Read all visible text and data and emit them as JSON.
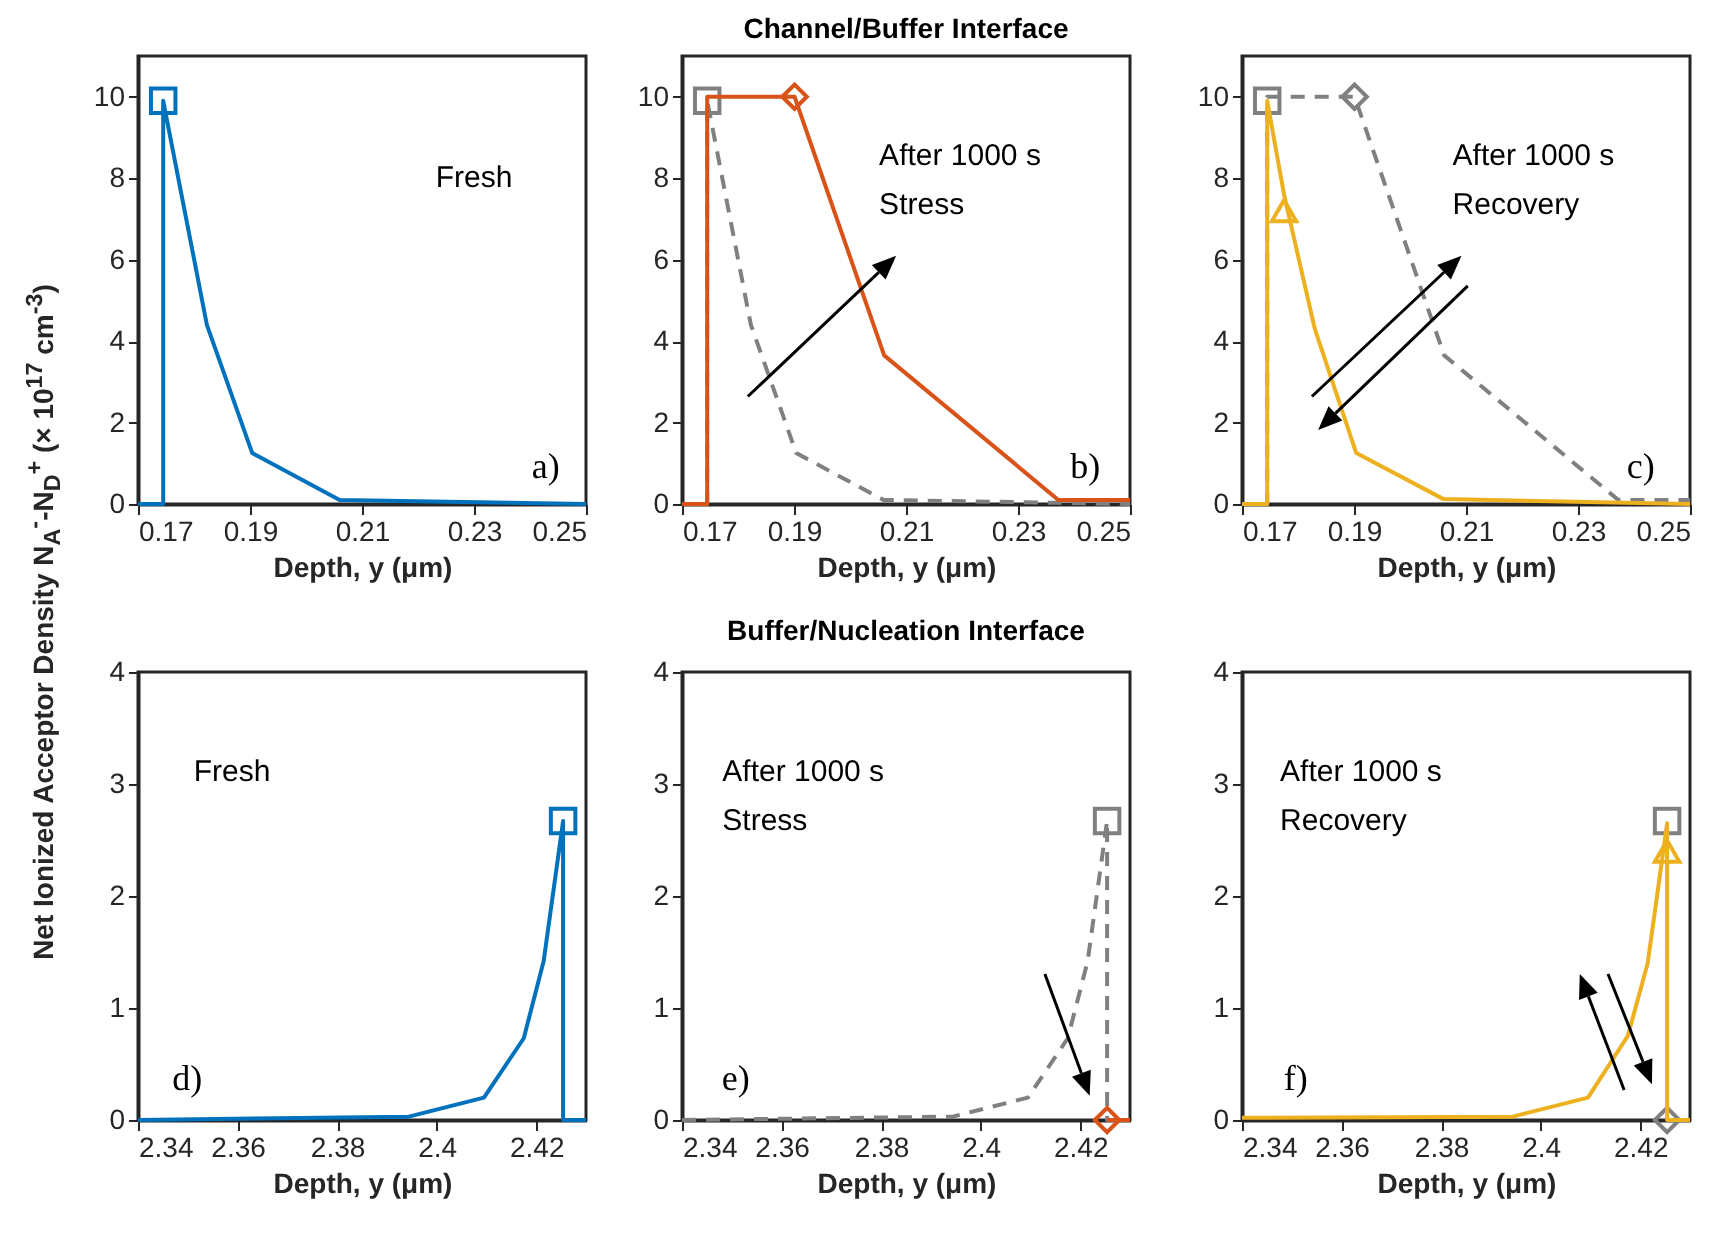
{
  "chart_data": [
    {
      "type": "line",
      "ylabel": "Net Ionized Acceptor Density N$_{A}$$^{-}$-N$_{D}$$^{+}$ (× 10$^{17}$ cm$^{-3}$)",
      "xlabel": "Depth, y (μm)",
      "xlim": [
        0.17,
        0.25
      ],
      "ylim": [
        0,
        11
      ],
      "xticks": [
        0.17,
        0.19,
        0.21,
        0.23,
        0.25
      ],
      "yticks": [
        0,
        2,
        4,
        6,
        8,
        10
      ],
      "annotations": [
        "Fresh",
        "a)"
      ],
      "series": [
        {
          "type": "line",
          "color": "#0072bd",
          "x": [
            0.17,
            0.1745,
            0.1745,
            0.1823,
            0.1904,
            0.206,
            0.25
          ],
          "values": [
            0,
            0,
            9.9,
            4.4,
            1.25,
            0.1,
            0
          ]
        },
        {
          "type": "scatter",
          "marker": "square",
          "color": "#0072bd",
          "x": [
            0.1745
          ],
          "values": [
            9.9
          ]
        }
      ]
    },
    {
      "type": "line",
      "title": "Channel/Buffer Interface",
      "xlabel": "Depth, y (μm)",
      "xlim": [
        0.17,
        0.25
      ],
      "ylim": [
        0,
        11
      ],
      "xticks": [
        0.17,
        0.19,
        0.21,
        0.23,
        0.25
      ],
      "yticks": [
        0,
        2,
        4,
        6,
        8,
        10
      ],
      "annotations": [
        "After 1000 s",
        "Stress",
        "b)"
      ],
      "series": [
        {
          "type": "line",
          "line_style": "dashed",
          "color": "#808080",
          "x": [
            0.17,
            0.1745,
            0.1745,
            0.1823,
            0.1904,
            0.206,
            0.25
          ],
          "values": [
            0,
            0,
            9.9,
            4.4,
            1.25,
            0.1,
            0
          ]
        },
        {
          "type": "scatter",
          "marker": "square",
          "color": "#808080",
          "x": [
            0.1745
          ],
          "values": [
            9.9
          ]
        },
        {
          "type": "line",
          "color": "#d95319",
          "x": [
            0.17,
            0.1745,
            0.1745,
            0.1901,
            0.2061,
            0.2372,
            0.25
          ],
          "values": [
            0,
            0,
            10,
            10,
            3.65,
            0.1,
            0.1
          ]
        },
        {
          "type": "scatter",
          "marker": "diamond",
          "color": "#d95319",
          "x": [
            0.1901
          ],
          "values": [
            10
          ]
        }
      ]
    },
    {
      "type": "line",
      "xlabel": "Depth, y (μm)",
      "xlim": [
        0.17,
        0.25
      ],
      "ylim": [
        0,
        11
      ],
      "xticks": [
        0.17,
        0.19,
        0.21,
        0.23,
        0.25
      ],
      "yticks": [
        0,
        2,
        4,
        6,
        8,
        10
      ],
      "annotations": [
        "After 1000 s",
        "Recovery",
        "c)"
      ],
      "series": [
        {
          "type": "line",
          "line_style": "dashed",
          "color": "#808080",
          "x": [
            0.17,
            0.1745,
            0.1745,
            0.1901,
            0.2061,
            0.2372,
            0.25
          ],
          "values": [
            0,
            0,
            10,
            10,
            3.65,
            0.1,
            0.1
          ]
        },
        {
          "type": "scatter",
          "marker": "square",
          "color": "#808080",
          "x": [
            0.1745
          ],
          "values": [
            9.9
          ]
        },
        {
          "type": "scatter",
          "marker": "diamond",
          "color": "#808080",
          "x": [
            0.1901
          ],
          "values": [
            10
          ]
        },
        {
          "type": "line",
          "color": "#edb120",
          "x": [
            0.17,
            0.1745,
            0.1745,
            0.1775,
            0.183,
            0.1904,
            0.206,
            0.25
          ],
          "values": [
            0,
            0,
            9.9,
            7.6,
            4.3,
            1.25,
            0.12,
            0
          ]
        },
        {
          "type": "scatter",
          "marker": "triangle",
          "color": "#edb120",
          "x": [
            0.1775
          ],
          "values": [
            7.2
          ]
        }
      ]
    },
    {
      "type": "line",
      "xlabel": "Depth, y (μm)",
      "xlim": [
        2.34,
        2.43
      ],
      "ylim": [
        0,
        4
      ],
      "xticks": [
        2.34,
        2.36,
        2.38,
        2.4,
        2.42
      ],
      "yticks": [
        0,
        1,
        2,
        3,
        4
      ],
      "annotations": [
        "Fresh",
        "d)"
      ],
      "series": [
        {
          "type": "line",
          "color": "#0072bd",
          "x": [
            2.34,
            2.3944,
            2.4095,
            2.4175,
            2.4215,
            2.4254,
            2.4254,
            2.43
          ],
          "values": [
            0,
            0.03,
            0.2,
            0.73,
            1.42,
            2.67,
            0,
            0
          ]
        },
        {
          "type": "scatter",
          "marker": "square",
          "color": "#0072bd",
          "x": [
            2.4254
          ],
          "values": [
            2.67
          ]
        }
      ]
    },
    {
      "type": "line",
      "title": "Buffer/Nucleation Interface",
      "xlabel": "Depth, y (μm)",
      "xlim": [
        2.34,
        2.43
      ],
      "ylim": [
        0,
        4
      ],
      "xticks": [
        2.34,
        2.36,
        2.38,
        2.4,
        2.42
      ],
      "yticks": [
        0,
        1,
        2,
        3,
        4
      ],
      "annotations": [
        "After 1000 s",
        "Stress",
        "e)"
      ],
      "series": [
        {
          "type": "line",
          "line_style": "dashed",
          "color": "#808080",
          "x": [
            2.34,
            2.3944,
            2.4095,
            2.4175,
            2.4215,
            2.4254,
            2.4254,
            2.43
          ],
          "values": [
            0,
            0.03,
            0.2,
            0.73,
            1.42,
            2.67,
            0,
            0
          ]
        },
        {
          "type": "scatter",
          "marker": "square",
          "color": "#808080",
          "x": [
            2.4254
          ],
          "values": [
            2.67
          ]
        },
        {
          "type": "line",
          "color": "#d95319",
          "x": [
            2.4254,
            2.43
          ],
          "values": [
            0,
            0
          ]
        },
        {
          "type": "scatter",
          "marker": "diamond",
          "color": "#d95319",
          "x": [
            2.4254
          ],
          "values": [
            0
          ]
        }
      ]
    },
    {
      "type": "line",
      "xlabel": "Depth, y (μm)",
      "xlim": [
        2.34,
        2.43
      ],
      "ylim": [
        0,
        4
      ],
      "xticks": [
        2.34,
        2.36,
        2.38,
        2.4,
        2.42
      ],
      "yticks": [
        0,
        1,
        2,
        3,
        4
      ],
      "annotations": [
        "After 1000 s",
        "Recovery",
        "f)"
      ],
      "series": [
        {
          "type": "scatter",
          "marker": "square",
          "color": "#808080",
          "x": [
            2.4254
          ],
          "values": [
            2.67
          ]
        },
        {
          "type": "scatter",
          "marker": "diamond",
          "color": "#808080",
          "x": [
            2.4254
          ],
          "values": [
            0
          ]
        },
        {
          "type": "line",
          "color": "#edb120",
          "x": [
            2.34,
            2.3944,
            2.4095,
            2.4175,
            2.4215,
            2.4254,
            2.4254,
            2.43
          ],
          "values": [
            0.02,
            0.03,
            0.2,
            0.75,
            1.4,
            2.65,
            0,
            0
          ]
        },
        {
          "type": "scatter",
          "marker": "triangle",
          "color": "#edb120",
          "x": [
            2.4254
          ],
          "values": [
            2.4
          ]
        }
      ]
    }
  ]
}
